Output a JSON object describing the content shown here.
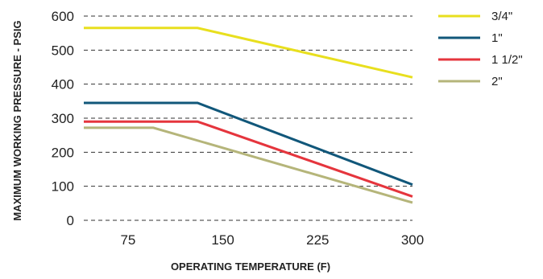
{
  "chart_data": {
    "type": "line",
    "title": "",
    "xlabel": "OPERATING TEMPERATURE (F)",
    "ylabel": "MAXIMUM WORKING PRESSURE - PSIG",
    "xlim": [
      40,
      300
    ],
    "ylim": [
      0,
      600
    ],
    "x_ticks": [
      "75",
      "150",
      "225",
      "300"
    ],
    "y_ticks": [
      "0",
      "100",
      "200",
      "300",
      "400",
      "500",
      "600"
    ],
    "grid": "horizontal dashed",
    "legend_position": "right",
    "series": [
      {
        "name": "3/4\"",
        "color": "#e8df1e",
        "points": [
          [
            40,
            565
          ],
          [
            130,
            565
          ],
          [
            300,
            420
          ]
        ]
      },
      {
        "name": "1\"",
        "color": "#11577a",
        "points": [
          [
            40,
            345
          ],
          [
            130,
            345
          ],
          [
            300,
            105
          ]
        ]
      },
      {
        "name": "1 1/2\"",
        "color": "#e5353d",
        "points": [
          [
            40,
            290
          ],
          [
            130,
            290
          ],
          [
            300,
            70
          ]
        ]
      },
      {
        "name": "2\"",
        "color": "#b5b57a",
        "points": [
          [
            40,
            272
          ],
          [
            95,
            272
          ],
          [
            300,
            52
          ]
        ]
      }
    ]
  }
}
